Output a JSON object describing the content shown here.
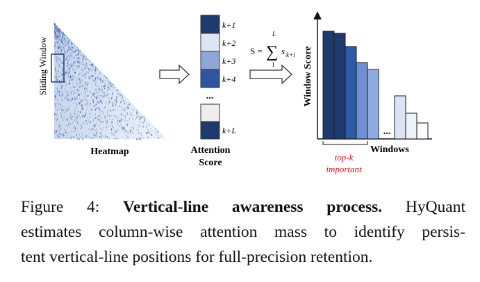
{
  "figure": {
    "heatmap_side_label": "Sliding Window",
    "heatmap_label": "Heatmap",
    "attention_labels": [
      "k+1",
      "k+2",
      "k+3",
      "k+4",
      "...",
      "k+L"
    ],
    "attention_title": [
      "Attention",
      "Score"
    ],
    "formula": {
      "lhs": "S =",
      "sum": "∑",
      "upper": "L",
      "lower": "1",
      "term": "s",
      "subscript": "k+i"
    },
    "y_label": "Window Score",
    "x_label": "Windows",
    "gap_label": "...",
    "topk_label": [
      "top-k",
      "important"
    ]
  },
  "caption": {
    "label": "Figure 4:",
    "title": "Vertical-line awareness process.",
    "lines": [
      "HyQuant",
      "estimates column-wise attention mass to identify persis-",
      "tent vertical-line positions for full-precision retention."
    ]
  }
}
